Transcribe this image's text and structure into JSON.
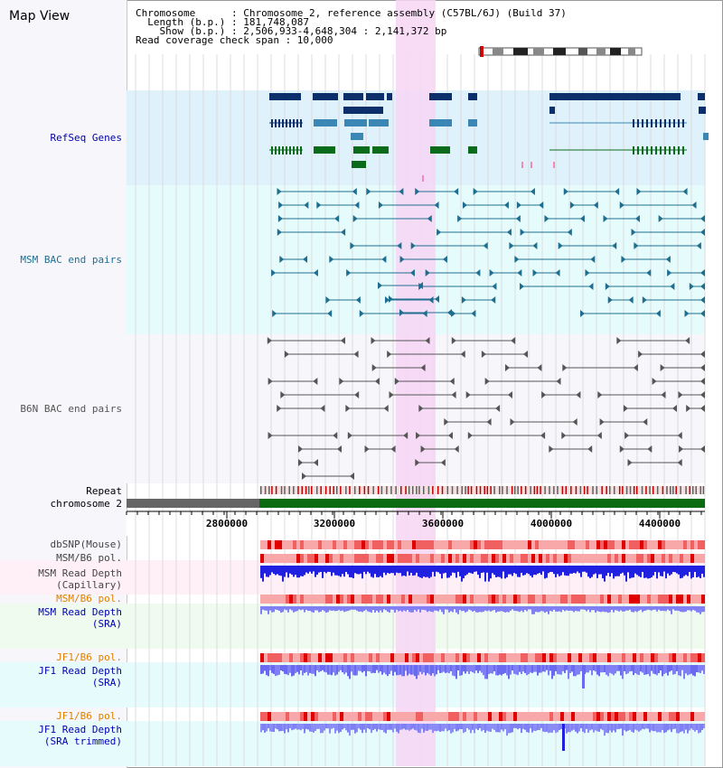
{
  "view_title": "Map View",
  "info": {
    "chromosome_line": "Chromosome      : Chromosome 2, reference assembly (C57BL/6J) (Build 37)",
    "length_line": "  Length (b.p.) : 181,748,087",
    "show_line": "    Show (b.p.) : 2,506,933-4,648,304 : 2,141,372 bp",
    "span_line": "Read coverage check span : 10,000"
  },
  "tracks": {
    "refseq": "RefSeq Genes",
    "msm_bac": "MSM BAC end pairs",
    "b6n_bac": "B6N BAC end pairs",
    "repeat": "Repeat",
    "chromosome": "chromosome 2",
    "dbsnp": "dbSNP(Mouse)",
    "msm_b6_pol1": "MSM/B6 pol.",
    "msm_read_depth_cap1": "MSM Read Depth",
    "msm_read_depth_cap2": "(Capillary)",
    "msm_b6_pol2": "MSM/B6 pol.",
    "msm_read_depth_sra1": "MSM Read Depth",
    "msm_read_depth_sra2": "(SRA)",
    "jf1_b6_pol1": "JF1/B6 pol.",
    "jf1_read_depth_sra1": "JF1 Read Depth",
    "jf1_read_depth_sra2": "(SRA)",
    "jf1_b6_pol2": "JF1/B6 pol.",
    "jf1_read_depth_trim1": "JF1 Read Depth",
    "jf1_read_depth_trim2": "(SRA trimmed)"
  },
  "axis_ticks": [
    "2800000",
    "3200000",
    "3600000",
    "4000000",
    "4400000"
  ],
  "colors": {
    "refseq_bg": "#dff1fb",
    "msm_bac_bg": "#e6fcfc",
    "b6n_bac_bg": "#f6f6fb",
    "highlight": "#f7d6f5",
    "refseq_dark": "#0b2f6b",
    "refseq_mid": "#3a87b6",
    "refseq_green": "#0a6b1a",
    "msm_bac_line": "#1f6e90",
    "b6n_bac_line": "#555555",
    "chromosome_band": "#0b6b12",
    "depth_blue": "#2020e0",
    "depth_light": "#8080f4"
  }
}
